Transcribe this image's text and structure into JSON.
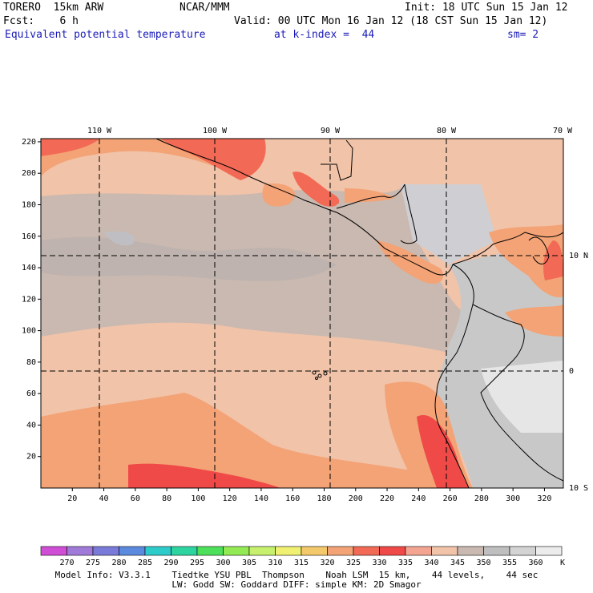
{
  "header": {
    "model": "TORERO  15km ARW",
    "center": "NCAR/MMM",
    "init": "Init: 18 UTC Sun 15 Jan 12",
    "forecast": "Fcst:    6 h",
    "valid": "Valid: 00 UTC Mon 16 Jan 12 (18 CST Sun 15 Jan 12)",
    "field": "Equivalent potential temperature",
    "level": "at k-index =  44",
    "smooth": "sm= 2"
  },
  "map": {
    "top_lon_labels": [
      "110 W",
      "100 W",
      "90 W",
      "80 W",
      "70 W"
    ],
    "right_lat_labels": [
      "10 N",
      "0",
      "10 S"
    ],
    "y_ticks": [
      "220",
      "200",
      "180",
      "160",
      "140",
      "120",
      "100",
      "80",
      "60",
      "40",
      "20"
    ],
    "x_ticks": [
      "20",
      "40",
      "60",
      "80",
      "100",
      "120",
      "140",
      "160",
      "180",
      "200",
      "220",
      "240",
      "260",
      "280",
      "300",
      "320"
    ],
    "x_range": [
      0,
      332
    ],
    "y_range": [
      0,
      222
    ]
  },
  "colorbar": {
    "labels": [
      "270",
      "275",
      "280",
      "285",
      "290",
      "295",
      "300",
      "305",
      "310",
      "315",
      "320",
      "325",
      "330",
      "335",
      "340",
      "345",
      "350",
      "355",
      "360"
    ],
    "unit": "K",
    "colors": [
      "#d04ed6",
      "#a07ad8",
      "#7a7ad8",
      "#5b8adf",
      "#2ecbcb",
      "#2ed4a0",
      "#4fe05b",
      "#94ea55",
      "#c6f06e",
      "#f0f073",
      "#f4c96b",
      "#f3a376",
      "#f26a55",
      "#f04a48",
      "#f4a592",
      "#f1c3a9",
      "#c9b9b0",
      "#bfbfbf",
      "#d4d4d4",
      "#ececec"
    ]
  },
  "footer": {
    "line1": "Model Info: V3.3.1    Tiedtke YSU PBL  Thompson    Noah LSM  15 km,    44 levels,    44 sec",
    "line2": "LW: Godd SW: Goddard DIFF: simple KM: 2D Smagor"
  }
}
